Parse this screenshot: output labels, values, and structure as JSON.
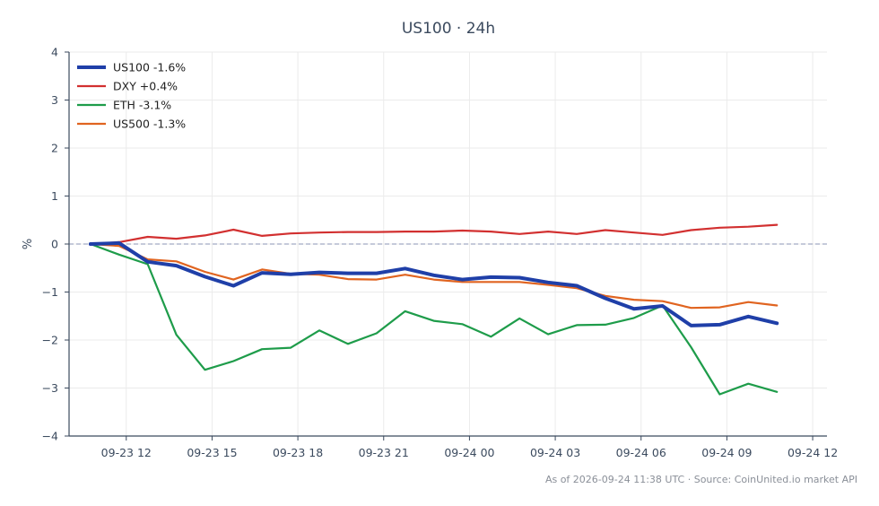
{
  "chart_data": {
    "type": "line",
    "title": "US100 · 24h",
    "xlabel": "",
    "ylabel": "%",
    "ylim": [
      -4,
      4
    ],
    "y_ticks": [
      4,
      3,
      2,
      1,
      0,
      -1,
      -2,
      -3,
      -4
    ],
    "y_tick_labels": [
      "4",
      "3",
      "2",
      "1",
      "0",
      "−1",
      "−2",
      "−3",
      "−4"
    ],
    "x": [
      "09-23 10:45",
      "09-23 11:45",
      "09-23 12:45",
      "09-23 13:45",
      "09-23 14:45",
      "09-23 15:45",
      "09-23 16:45",
      "09-23 17:45",
      "09-23 18:45",
      "09-23 19:45",
      "09-23 20:45",
      "09-23 21:45",
      "09-23 22:45",
      "09-23 23:45",
      "09-24 00:45",
      "09-24 01:45",
      "09-24 02:45",
      "09-24 03:45",
      "09-24 04:45",
      "09-24 05:45",
      "09-24 06:45",
      "09-24 07:45",
      "09-24 08:45",
      "09-24 09:45",
      "09-24 10:45"
    ],
    "x_ticks": [
      "09-23 12",
      "09-23 15",
      "09-23 18",
      "09-23 21",
      "09-24 00",
      "09-24 03",
      "09-24 06",
      "09-24 09",
      "09-24 12"
    ],
    "zero_line": true,
    "grid": true,
    "legend_position": "top-left",
    "series": [
      {
        "name": "US100 -1.6%",
        "color": "#1f3fa8",
        "emphasis": true,
        "values": [
          0.0,
          0.02,
          -0.37,
          -0.45,
          -0.68,
          -0.87,
          -0.6,
          -0.63,
          -0.59,
          -0.61,
          -0.61,
          -0.51,
          -0.65,
          -0.74,
          -0.69,
          -0.7,
          -0.8,
          -0.87,
          -1.13,
          -1.35,
          -1.29,
          -1.7,
          -1.68,
          -1.51,
          -1.65
        ]
      },
      {
        "name": "DXY +0.4%",
        "color": "#d23030",
        "values": [
          0.0,
          0.04,
          0.15,
          0.11,
          0.18,
          0.3,
          0.17,
          0.22,
          0.24,
          0.25,
          0.25,
          0.26,
          0.26,
          0.28,
          0.26,
          0.21,
          0.26,
          0.21,
          0.29,
          0.24,
          0.19,
          0.29,
          0.34,
          0.36,
          0.4
        ]
      },
      {
        "name": "ETH -3.1%",
        "color": "#1e9c4a",
        "values": [
          0.0,
          -0.22,
          -0.42,
          -1.89,
          -2.62,
          -2.44,
          -2.19,
          -2.16,
          -1.8,
          -2.08,
          -1.86,
          -1.4,
          -1.6,
          -1.67,
          -1.93,
          -1.55,
          -1.88,
          -1.69,
          -1.68,
          -1.54,
          -1.28,
          -2.15,
          -3.13,
          -2.91,
          -3.08
        ]
      },
      {
        "name": "US500 -1.3%",
        "color": "#e06420",
        "values": [
          0.0,
          -0.04,
          -0.32,
          -0.36,
          -0.58,
          -0.74,
          -0.53,
          -0.62,
          -0.64,
          -0.73,
          -0.74,
          -0.64,
          -0.74,
          -0.79,
          -0.79,
          -0.79,
          -0.85,
          -0.92,
          -1.08,
          -1.16,
          -1.19,
          -1.33,
          -1.32,
          -1.21,
          -1.28
        ]
      }
    ]
  },
  "footer": {
    "text": "As of 2026-09-24 11:38 UTC · Source: CoinUnited.io market API"
  }
}
